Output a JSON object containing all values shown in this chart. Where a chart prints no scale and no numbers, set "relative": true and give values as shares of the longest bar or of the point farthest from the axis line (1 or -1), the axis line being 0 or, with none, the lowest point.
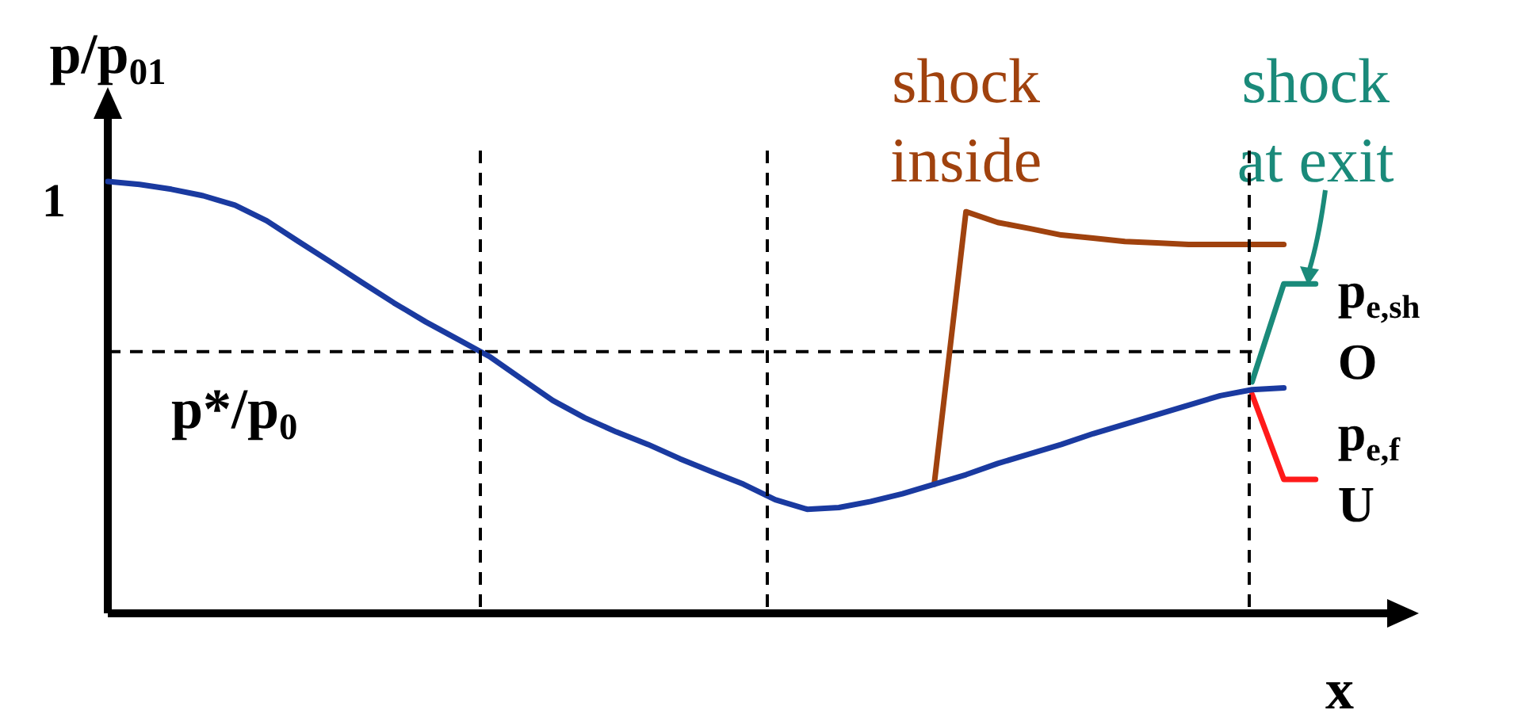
{
  "chart_data": {
    "type": "line",
    "relative": true,
    "xlabel": "x",
    "ylabel": "p/p$_{01}$",
    "legend": false,
    "marker": "none",
    "line_style": "solid",
    "categories": [
      null,
      null,
      null,
      null,
      null,
      null,
      null,
      null,
      null,
      null,
      null,
      null,
      null,
      null,
      null,
      null,
      null,
      null,
      null,
      null,
      null,
      null,
      null,
      null,
      null,
      null,
      null,
      null,
      null,
      null,
      null,
      null,
      null,
      null,
      null,
      null,
      null,
      null,
      null,
      null,
      null,
      null
    ],
    "series": [
      {
        "color": "#1a3aa0",
        "values": [
          1.0,
          0.993,
          0.982,
          0.967,
          0.945,
          0.909,
          0.861,
          0.814,
          0.766,
          0.719,
          0.675,
          0.635,
          0.595,
          0.544,
          0.493,
          0.453,
          0.42,
          0.391,
          0.358,
          0.328,
          0.299,
          0.263,
          0.241,
          0.245,
          0.259,
          0.277,
          0.299,
          0.321,
          0.347,
          0.369,
          0.391,
          0.416,
          0.438,
          0.46,
          0.482,
          0.504,
          0.518,
          0.522,
          null,
          null,
          null,
          null
        ]
      },
      {
        "name": "shock inside",
        "color": "#a0420e",
        "values": [
          null,
          null,
          null,
          null,
          null,
          null,
          null,
          null,
          null,
          null,
          null,
          null,
          null,
          null,
          null,
          null,
          null,
          null,
          null,
          null,
          null,
          null,
          null,
          null,
          null,
          null,
          0.299,
          0.93,
          0.905,
          0.891,
          0.876,
          0.869,
          0.861,
          0.858,
          0.854,
          0.854,
          0.854,
          0.854,
          null,
          null,
          null,
          null
        ]
      },
      {
        "name": "shock at exit",
        "color": "#1a8a7a",
        "values": [
          null,
          null,
          null,
          null,
          null,
          null,
          null,
          null,
          null,
          null,
          null,
          null,
          null,
          null,
          null,
          null,
          null,
          null,
          null,
          null,
          null,
          null,
          null,
          null,
          null,
          null,
          null,
          null,
          null,
          null,
          null,
          null,
          null,
          null,
          null,
          null,
          0.536,
          0.763,
          0.763,
          null,
          null,
          null
        ]
      },
      {
        "color": "#ff1a1a",
        "values": [
          null,
          null,
          null,
          null,
          null,
          null,
          null,
          null,
          null,
          null,
          null,
          null,
          null,
          null,
          null,
          null,
          null,
          null,
          null,
          null,
          null,
          null,
          null,
          null,
          null,
          null,
          null,
          null,
          null,
          null,
          null,
          null,
          null,
          null,
          null,
          null,
          0.507,
          0.31,
          0.31,
          null,
          null,
          null
        ]
      }
    ],
    "ref_lines": [
      {
        "axis": "y",
        "value": 0.606,
        "label": "p*/p$_{0}$",
        "line_style": "dashed"
      }
    ],
    "annotations": [
      "1",
      "p$_{e,sh}$",
      "O",
      "p$_{e,f}$",
      "U"
    ]
  }
}
